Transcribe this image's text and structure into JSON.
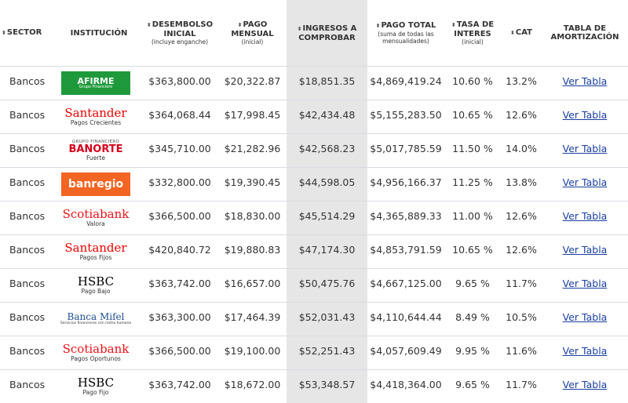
{
  "header": {
    "columns": [
      {
        "title": "SECTOR"
      },
      {
        "title": "INSTITUCIÓN"
      },
      {
        "title": "DESEMBOLSO INICIAL",
        "note": "(incluye enganche)"
      },
      {
        "title": "PAGO MENSUAL",
        "note": "(inicial)"
      },
      {
        "title": "INGRESOS A COMPROBAR"
      },
      {
        "title": "PAGO TOTAL",
        "note": "(suma de todas las mensualidades)"
      },
      {
        "title": "TASA DE INTERES",
        "note": "(inicial)"
      },
      {
        "title": "CAT"
      },
      {
        "title": "TABLA DE AMORTIZACIÓN"
      }
    ]
  },
  "table": {
    "rows": [
      {
        "sector": "Bancos",
        "institution": {
          "brand": "AFIRME",
          "suffix": "Grupo Financiero",
          "color": "#ffffff",
          "background": "#1e9a3c"
        },
        "disbursement": "$363,800.00",
        "monthly": "$20,322.87",
        "income": "$18,851.35",
        "total": "$4,869,419.24",
        "rate": "10.60 %",
        "cat": "13.2%",
        "link": "Ver Tabla"
      },
      {
        "sector": "Bancos",
        "institution": {
          "brand": "Santander",
          "product": "Pagos Crecientes",
          "color": "#ec0000"
        },
        "disbursement": "$364,068.44",
        "monthly": "$17,998.45",
        "income": "$42,434.48",
        "total": "$5,155,283.50",
        "rate": "10.65 %",
        "cat": "12.6%",
        "link": "Ver Tabla"
      },
      {
        "sector": "Bancos",
        "institution": {
          "prefix": "GRUPO FINANCIERO",
          "brand": "BANORTE",
          "product": "Fuerte",
          "color": "#d5001c"
        },
        "disbursement": "$345,710.00",
        "monthly": "$21,282.96",
        "income": "$42,568.23",
        "total": "$5,017,785.59",
        "rate": "11.50 %",
        "cat": "14.0%",
        "link": "Ver Tabla"
      },
      {
        "sector": "Bancos",
        "institution": {
          "brand": "banregio",
          "color": "#ffffff",
          "background": "#f26522"
        },
        "disbursement": "$332,800.00",
        "monthly": "$19,390.45",
        "income": "$44,598.05",
        "total": "$4,956,166.37",
        "rate": "11.25 %",
        "cat": "13.8%",
        "link": "Ver Tabla"
      },
      {
        "sector": "Bancos",
        "institution": {
          "brand": "Scotiabank",
          "product": "Valora",
          "color": "#ec111a"
        },
        "disbursement": "$366,500.00",
        "monthly": "$18,830.00",
        "income": "$45,514.29",
        "total": "$4,365,889.33",
        "rate": "11.00 %",
        "cat": "12.6%",
        "link": "Ver Tabla"
      },
      {
        "sector": "Bancos",
        "institution": {
          "brand": "Santander",
          "product": "Pagos Fijos",
          "color": "#ec0000"
        },
        "disbursement": "$420,840.72",
        "monthly": "$19,880.83",
        "income": "$47,174.30",
        "total": "$4,853,791.59",
        "rate": "10.65 %",
        "cat": "12.6%",
        "link": "Ver Tabla"
      },
      {
        "sector": "Bancos",
        "institution": {
          "brand": "HSBC",
          "product": "Pago Bajo",
          "color": "#000000"
        },
        "disbursement": "$363,742.00",
        "monthly": "$16,657.00",
        "income": "$50,475.76",
        "total": "$4,667,125.00",
        "rate": "9.65 %",
        "cat": "11.7%",
        "link": "Ver Tabla"
      },
      {
        "sector": "Bancos",
        "institution": {
          "brand": "Banca Mifel",
          "product": "Servicios financieros con rostro humano",
          "color": "#1d4f91"
        },
        "disbursement": "$363,300.00",
        "monthly": "$17,464.39",
        "income": "$52,031.43",
        "total": "$4,110,644.44",
        "rate": "8.49 %",
        "cat": "10.5%",
        "link": "Ver Tabla"
      },
      {
        "sector": "Bancos",
        "institution": {
          "brand": "Scotiabank",
          "product": "Pagos Oportunos",
          "color": "#ec111a"
        },
        "disbursement": "$366,500.00",
        "monthly": "$19,100.00",
        "income": "$52,251.43",
        "total": "$4,057,609.49",
        "rate": "9.95 %",
        "cat": "11.6%",
        "link": "Ver Tabla"
      },
      {
        "sector": "Bancos",
        "institution": {
          "brand": "HSBC",
          "product": "Pago Fijo",
          "color": "#000000"
        },
        "disbursement": "$363,742.00",
        "monthly": "$18,672.00",
        "income": "$53,348.57",
        "total": "$4,418,364.00",
        "rate": "9.65 %",
        "cat": "11.7%",
        "link": "Ver Tabla"
      }
    ]
  }
}
